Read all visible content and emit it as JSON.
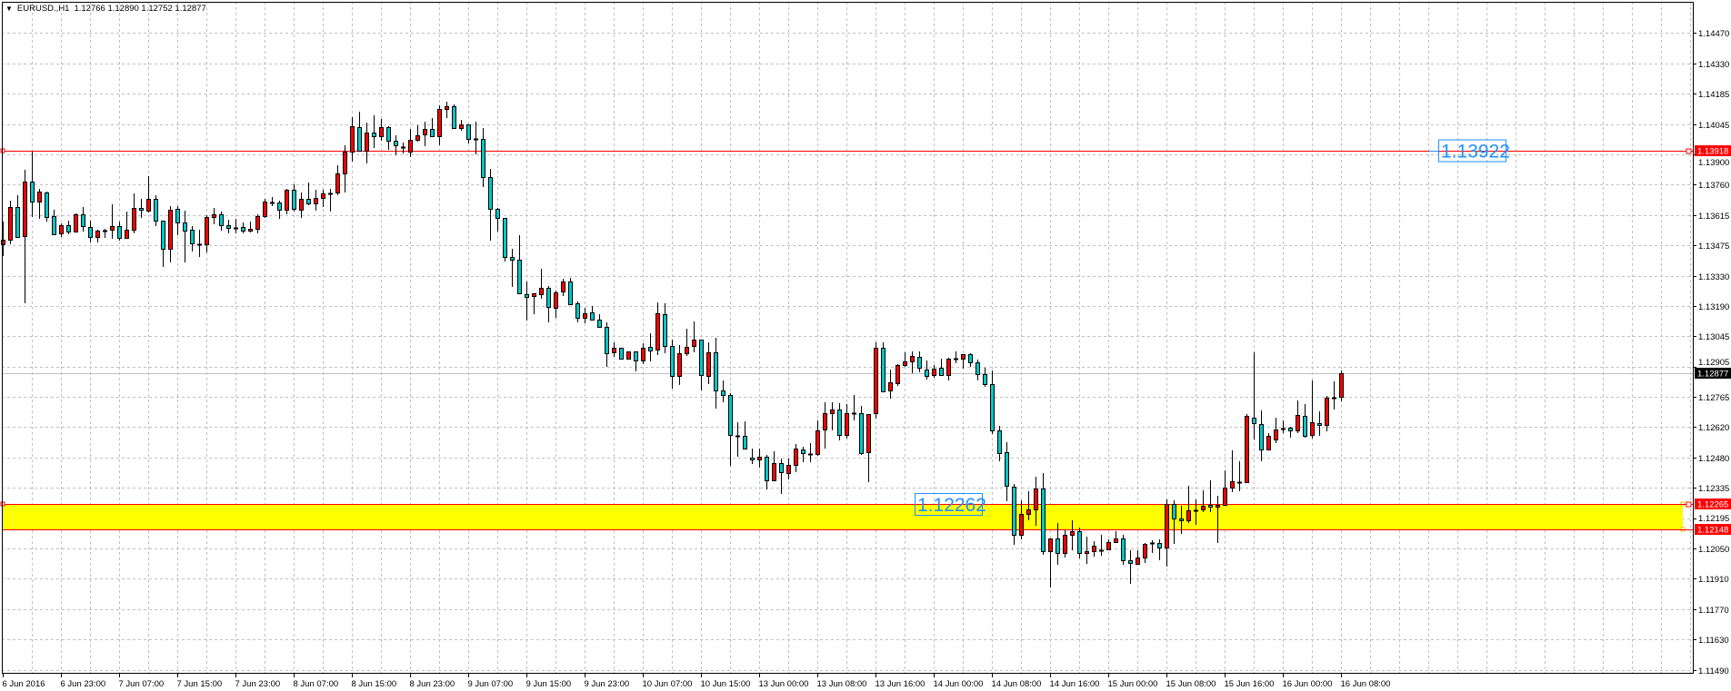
{
  "header": {
    "menu_icon": "triangle-down-icon",
    "symbol_title": "EURUSD.,H1",
    "ohlc_readout": "1.12766 1.12890 1.12752 1.12877"
  },
  "price_tags": {
    "upper_line": "1.13918",
    "bid": "1.12877",
    "zone_top": "1.12265",
    "zone_bottom": "1.12148"
  },
  "text_labels": {
    "upper": "1.13922",
    "zone": "1.12262"
  },
  "levels": {
    "upper_line": 1.13918,
    "bid": 1.12877,
    "zone_top": 1.12265,
    "zone_bottom": 1.12148,
    "upper_label_price": 1.13922,
    "zone_label_price": 1.12262
  },
  "colors": {
    "bull": "#ff0000",
    "bear": "#00c8c8",
    "level_line": "#ff0000",
    "zone_fill": "#ffff00",
    "bid_line": "#c0c0c0",
    "label_text": "#1e90ff",
    "grid": "#c0c0c0"
  },
  "chart_data": {
    "type": "candlestick",
    "symbol": "EURUSD.",
    "timeframe": "H1",
    "ylim": [
      1.1149,
      1.1447
    ],
    "grid": true,
    "price_axis_ticks": [
      "1.14470",
      "1.14330",
      "1.14185",
      "1.14045",
      "1.13900",
      "1.13760",
      "1.13615",
      "1.13475",
      "1.13330",
      "1.13190",
      "1.13045",
      "1.12905",
      "1.12765",
      "1.12620",
      "1.12480",
      "1.12335",
      "1.12195",
      "1.12050",
      "1.11910",
      "1.11770",
      "1.11630",
      "1.11490"
    ],
    "time_axis_ticks": [
      "6 Jun 2016",
      "6 Jun 23:00",
      "7 Jun 07:00",
      "7 Jun 15:00",
      "7 Jun 23:00",
      "8 Jun 07:00",
      "8 Jun 15:00",
      "8 Jun 23:00",
      "9 Jun 07:00",
      "9 Jun 15:00",
      "9 Jun 23:00",
      "10 Jun 07:00",
      "10 Jun 15:00",
      "13 Jun 00:00",
      "13 Jun 08:00",
      "13 Jun 16:00",
      "14 Jun 00:00",
      "14 Jun 08:00",
      "14 Jun 16:00",
      "15 Jun 00:00",
      "15 Jun 08:00",
      "15 Jun 16:00",
      "16 Jun 00:00",
      "16 Jun 08:00"
    ],
    "bars_per_time_tick": 8,
    "candle_fields": [
      "open",
      "high",
      "low",
      "close"
    ],
    "candles": [
      [
        1.13482,
        1.13588,
        1.13431,
        1.13503
      ],
      [
        1.13503,
        1.13686,
        1.13486,
        1.13656
      ],
      [
        1.13656,
        1.13711,
        1.13516,
        1.13516
      ],
      [
        1.1352,
        1.1383,
        1.1321,
        1.13775
      ],
      [
        1.13775,
        1.13915,
        1.13614,
        1.13682
      ],
      [
        1.13682,
        1.13741,
        1.13605,
        1.13728
      ],
      [
        1.13724,
        1.13728,
        1.13592,
        1.13609
      ],
      [
        1.13614,
        1.13643,
        1.13529,
        1.13529
      ],
      [
        1.13533,
        1.1358,
        1.1352,
        1.13571
      ],
      [
        1.13571,
        1.13592,
        1.13533,
        1.13541
      ],
      [
        1.13541,
        1.13626,
        1.13541,
        1.13622
      ],
      [
        1.13622,
        1.13656,
        1.13546,
        1.13567
      ],
      [
        1.13563,
        1.13592,
        1.13495,
        1.13516
      ],
      [
        1.13516,
        1.1355,
        1.13495,
        1.13546
      ],
      [
        1.13546,
        1.13554,
        1.13516,
        1.13546
      ],
      [
        1.1355,
        1.13669,
        1.13512,
        1.13567
      ],
      [
        1.13567,
        1.13588,
        1.13503,
        1.13512
      ],
      [
        1.13512,
        1.13635,
        1.13512,
        1.1355
      ],
      [
        1.1355,
        1.1372,
        1.13537,
        1.13652
      ],
      [
        1.13652,
        1.13694,
        1.13609,
        1.13643
      ],
      [
        1.13639,
        1.138,
        1.13635,
        1.13694
      ],
      [
        1.13694,
        1.13711,
        1.13571,
        1.13592
      ],
      [
        1.13592,
        1.13592,
        1.1338,
        1.13461
      ],
      [
        1.13461,
        1.1366,
        1.13401,
        1.13643
      ],
      [
        1.13648,
        1.1366,
        1.13529,
        1.13584
      ],
      [
        1.13584,
        1.13639,
        1.13401,
        1.13546
      ],
      [
        1.1355,
        1.13567,
        1.13452,
        1.13486
      ],
      [
        1.13482,
        1.1355,
        1.13427,
        1.13482
      ],
      [
        1.13482,
        1.13618,
        1.13448,
        1.13609
      ],
      [
        1.13609,
        1.13652,
        1.1358,
        1.13622
      ],
      [
        1.13622,
        1.13635,
        1.1355,
        1.13571
      ],
      [
        1.13571,
        1.13597,
        1.13537,
        1.13558
      ],
      [
        1.13558,
        1.13601,
        1.13537,
        1.13558
      ],
      [
        1.13563,
        1.13584,
        1.13537,
        1.13546
      ],
      [
        1.13546,
        1.13588,
        1.13541,
        1.13554
      ],
      [
        1.13554,
        1.13622,
        1.13537,
        1.13614
      ],
      [
        1.13614,
        1.13694,
        1.13609,
        1.13682
      ],
      [
        1.13677,
        1.13703,
        1.13665,
        1.13677
      ],
      [
        1.13677,
        1.13686,
        1.13605,
        1.13643
      ],
      [
        1.13643,
        1.13741,
        1.13626,
        1.13737
      ],
      [
        1.13737,
        1.13762,
        1.13639,
        1.13648
      ],
      [
        1.13643,
        1.13724,
        1.13609,
        1.13694
      ],
      [
        1.13694,
        1.13771,
        1.13669,
        1.13673
      ],
      [
        1.13673,
        1.13737,
        1.13643,
        1.13699
      ],
      [
        1.13699,
        1.13737,
        1.1366,
        1.1372
      ],
      [
        1.1372,
        1.13741,
        1.13639,
        1.1372
      ],
      [
        1.13724,
        1.13851,
        1.13715,
        1.13813
      ],
      [
        1.13813,
        1.13945,
        1.13728,
        1.13915
      ],
      [
        1.13915,
        1.14077,
        1.13873,
        1.14034
      ],
      [
        1.1403,
        1.14102,
        1.13919,
        1.13919
      ],
      [
        1.13919,
        1.14051,
        1.13864,
        1.14004
      ],
      [
        1.14004,
        1.14085,
        1.13936,
        1.13987
      ],
      [
        1.13987,
        1.14068,
        1.1397,
        1.1403
      ],
      [
        1.1403,
        1.14034,
        1.13928,
        1.13966
      ],
      [
        1.13966,
        1.13992,
        1.13902,
        1.13945
      ],
      [
        1.13936,
        1.13958,
        1.13911,
        1.13936
      ],
      [
        1.13915,
        1.14021,
        1.13894,
        1.1397
      ],
      [
        1.1397,
        1.14038,
        1.13966,
        1.13992
      ],
      [
        1.13996,
        1.14055,
        1.13945,
        1.14021
      ],
      [
        1.14021,
        1.14072,
        1.13987,
        1.13987
      ],
      [
        1.13987,
        1.14132,
        1.13949,
        1.14115
      ],
      [
        1.14115,
        1.14149,
        1.14077,
        1.14128
      ],
      [
        1.14128,
        1.14136,
        1.14026,
        1.14026
      ],
      [
        1.14026,
        1.14064,
        1.14017,
        1.14043
      ],
      [
        1.14043,
        1.14043,
        1.13958,
        1.13975
      ],
      [
        1.13975,
        1.14055,
        1.13907,
        1.13975
      ],
      [
        1.13975,
        1.14026,
        1.13754,
        1.13796
      ],
      [
        1.13796,
        1.13834,
        1.13503,
        1.13648
      ],
      [
        1.13648,
        1.13652,
        1.13546,
        1.13605
      ],
      [
        1.13605,
        1.13605,
        1.13405,
        1.13422
      ],
      [
        1.13422,
        1.13461,
        1.13286,
        1.1341
      ],
      [
        1.1341,
        1.13524,
        1.13252,
        1.13252
      ],
      [
        1.13248,
        1.13308,
        1.13129,
        1.13235
      ],
      [
        1.1324,
        1.13252,
        1.13159,
        1.13252
      ],
      [
        1.13248,
        1.13367,
        1.13231,
        1.13278
      ],
      [
        1.13278,
        1.13286,
        1.13121,
        1.13189
      ],
      [
        1.13184,
        1.13265,
        1.13142,
        1.13257
      ],
      [
        1.13261,
        1.1332,
        1.13244,
        1.13308
      ],
      [
        1.13308,
        1.13325,
        1.13201,
        1.13201
      ],
      [
        1.13206,
        1.13214,
        1.13121,
        1.13138
      ],
      [
        1.13138,
        1.13184,
        1.13116,
        1.13159
      ],
      [
        1.13163,
        1.13193,
        1.13129,
        1.13129
      ],
      [
        1.13129,
        1.13155,
        1.13095,
        1.13095
      ],
      [
        1.13095,
        1.13116,
        1.12912,
        1.12972
      ],
      [
        1.12976,
        1.13023,
        1.12959,
        1.12997
      ],
      [
        1.12997,
        1.12997,
        1.12946,
        1.12946
      ],
      [
        1.12946,
        1.1298,
        1.12946,
        1.1298
      ],
      [
        1.1298,
        1.1298,
        1.12891,
        1.12938
      ],
      [
        1.12938,
        1.13019,
        1.12925,
        1.12997
      ],
      [
        1.13002,
        1.13065,
        1.12938,
        1.12985
      ],
      [
        1.12989,
        1.1321,
        1.12968,
        1.13159
      ],
      [
        1.13155,
        1.13206,
        1.12976,
        1.13006
      ],
      [
        1.13006,
        1.13036,
        1.1281,
        1.12866
      ],
      [
        1.12866,
        1.1301,
        1.12827,
        1.12972
      ],
      [
        1.12972,
        1.13087,
        1.12963,
        1.13002
      ],
      [
        1.13006,
        1.13121,
        1.1298,
        1.13036
      ],
      [
        1.13036,
        1.13036,
        1.12802,
        1.1287
      ],
      [
        1.12866,
        1.13023,
        1.12832,
        1.12976
      ],
      [
        1.12976,
        1.13044,
        1.12717,
        1.12798
      ],
      [
        1.12798,
        1.12844,
        1.12747,
        1.12776
      ],
      [
        1.12776,
        1.12785,
        1.12449,
        1.12589
      ],
      [
        1.12585,
        1.12649,
        1.12492,
        1.12585
      ],
      [
        1.12585,
        1.12653,
        1.12526,
        1.12526
      ],
      [
        1.12483,
        1.12526,
        1.12458,
        1.12475
      ],
      [
        1.12475,
        1.12526,
        1.12441,
        1.12487
      ],
      [
        1.12487,
        1.12496,
        1.12339,
        1.12377
      ],
      [
        1.12377,
        1.12513,
        1.12377,
        1.12458
      ],
      [
        1.12458,
        1.12479,
        1.12317,
        1.12415
      ],
      [
        1.12411,
        1.12479,
        1.12385,
        1.12449
      ],
      [
        1.12449,
        1.12547,
        1.12419,
        1.12526
      ],
      [
        1.12521,
        1.12534,
        1.12466,
        1.12504
      ],
      [
        1.125,
        1.12551,
        1.12466,
        1.125
      ],
      [
        1.125,
        1.12657,
        1.12496,
        1.12611
      ],
      [
        1.12615,
        1.12742,
        1.1253,
        1.12691
      ],
      [
        1.12691,
        1.12742,
        1.12615,
        1.12708
      ],
      [
        1.12708,
        1.12738,
        1.12568,
        1.12589
      ],
      [
        1.12589,
        1.12734,
        1.12577,
        1.12691
      ],
      [
        1.12691,
        1.12776,
        1.12662,
        1.12691
      ],
      [
        1.12691,
        1.12725,
        1.125,
        1.12504
      ],
      [
        1.12509,
        1.12687,
        1.12373,
        1.12687
      ],
      [
        1.12691,
        1.13023,
        1.1267,
        1.12997
      ],
      [
        1.12997,
        1.13023,
        1.12793,
        1.12793
      ],
      [
        1.12798,
        1.12895,
        1.12764,
        1.12836
      ],
      [
        1.12832,
        1.12921,
        1.12823,
        1.12917
      ],
      [
        1.12917,
        1.12976,
        1.12912,
        1.12934
      ],
      [
        1.12934,
        1.1298,
        1.12883,
        1.12959
      ],
      [
        1.12955,
        1.1298,
        1.12887,
        1.12904
      ],
      [
        1.12895,
        1.12938,
        1.12853,
        1.12866
      ],
      [
        1.1287,
        1.12917,
        1.12861,
        1.129
      ],
      [
        1.12904,
        1.12946,
        1.1287,
        1.1287
      ],
      [
        1.1287,
        1.12951,
        1.12849,
        1.12946
      ],
      [
        1.12946,
        1.1298,
        1.12929,
        1.12946
      ],
      [
        1.12946,
        1.12968,
        1.12904,
        1.12968
      ],
      [
        1.12968,
        1.12972,
        1.12912,
        1.12929
      ],
      [
        1.12929,
        1.12942,
        1.12849,
        1.12874
      ],
      [
        1.12874,
        1.12904,
        1.12819,
        1.12827
      ],
      [
        1.12827,
        1.12891,
        1.12598,
        1.12611
      ],
      [
        1.12611,
        1.12632,
        1.1247,
        1.12504
      ],
      [
        1.12509,
        1.12555,
        1.12283,
        1.12351
      ],
      [
        1.12347,
        1.1236,
        1.12079,
        1.12122
      ],
      [
        1.12122,
        1.12283,
        1.12105,
        1.1222
      ],
      [
        1.1222,
        1.12326,
        1.12194,
        1.12241
      ],
      [
        1.12241,
        1.12394,
        1.12169,
        1.12339
      ],
      [
        1.12339,
        1.12411,
        1.12033,
        1.12045
      ],
      [
        1.12045,
        1.12105,
        1.1188,
        1.12105
      ],
      [
        1.12105,
        1.12177,
        1.11986,
        1.12037
      ],
      [
        1.12037,
        1.12143,
        1.1202,
        1.12122
      ],
      [
        1.12122,
        1.1219,
        1.12054,
        1.12139
      ],
      [
        1.12139,
        1.12156,
        1.12016,
        1.12037
      ],
      [
        1.12037,
        1.12113,
        1.1199,
        1.12045
      ],
      [
        1.12045,
        1.12092,
        1.12024,
        1.12071
      ],
      [
        1.1205,
        1.12122,
        1.12028,
        1.1205
      ],
      [
        1.12054,
        1.12101,
        1.12054,
        1.12088
      ],
      [
        1.12088,
        1.12139,
        1.12088,
        1.12105
      ],
      [
        1.12105,
        1.12122,
        1.11986,
        1.12003
      ],
      [
        1.12003,
        1.1205,
        1.11897,
        1.1199
      ],
      [
        1.11986,
        1.1205,
        1.11986,
        1.12016
      ],
      [
        1.12016,
        1.12084,
        1.11994,
        1.12079
      ],
      [
        1.12084,
        1.12096,
        1.12041,
        1.12084
      ],
      [
        1.12084,
        1.12101,
        1.12007,
        1.12062
      ],
      [
        1.12062,
        1.12288,
        1.11977,
        1.12266
      ],
      [
        1.12266,
        1.12283,
        1.12084,
        1.12198
      ],
      [
        1.12198,
        1.12258,
        1.1213,
        1.1219
      ],
      [
        1.1219,
        1.12351,
        1.12181,
        1.12237
      ],
      [
        1.12237,
        1.12288,
        1.12173,
        1.12237
      ],
      [
        1.12241,
        1.1233,
        1.12232,
        1.12258
      ],
      [
        1.12262,
        1.12377,
        1.12232,
        1.12254
      ],
      [
        1.12254,
        1.12305,
        1.12088,
        1.12262
      ],
      [
        1.12262,
        1.12424,
        1.12262,
        1.12343
      ],
      [
        1.12343,
        1.12517,
        1.12326,
        1.12373
      ],
      [
        1.12368,
        1.12466,
        1.1233,
        1.12368
      ],
      [
        1.12368,
        1.12687,
        1.12368,
        1.12679
      ],
      [
        1.1267,
        1.12976,
        1.12572,
        1.12645
      ],
      [
        1.1264,
        1.12704,
        1.1247,
        1.12521
      ],
      [
        1.12521,
        1.12598,
        1.12521,
        1.12585
      ],
      [
        1.12568,
        1.1267,
        1.12555,
        1.12615
      ],
      [
        1.12619,
        1.12657,
        1.12602,
        1.12619
      ],
      [
        1.12623,
        1.12628,
        1.12581,
        1.12611
      ],
      [
        1.12611,
        1.12751,
        1.12602,
        1.12683
      ],
      [
        1.12679,
        1.12734,
        1.12581,
        1.12585
      ],
      [
        1.12589,
        1.12844,
        1.12577,
        1.12649
      ],
      [
        1.12645,
        1.127,
        1.12589,
        1.12636
      ],
      [
        1.12636,
        1.12772,
        1.12611,
        1.12764
      ],
      [
        1.12764,
        1.1284,
        1.12713,
        1.12764
      ],
      [
        1.12766,
        1.1289,
        1.12752,
        1.12877
      ]
    ]
  }
}
